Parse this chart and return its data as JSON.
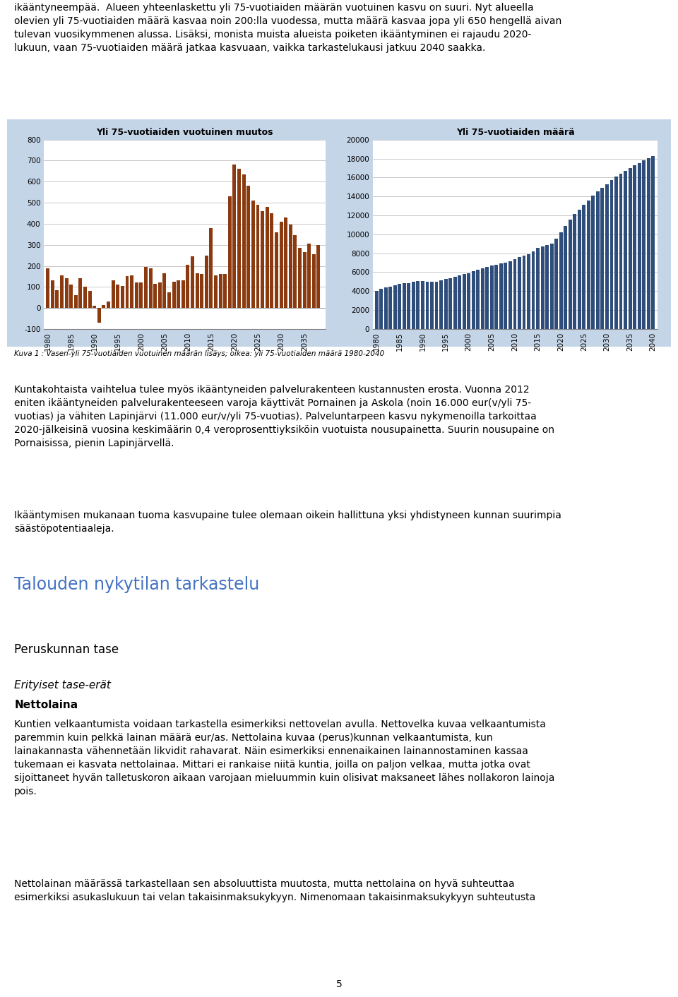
{
  "left_title": "Yli 75-vuotiaiden vuotuinen muutos",
  "right_title": "Yli 75-vuotiaiden määrä",
  "caption": "Kuva 1 : Vasen-yli 75-vuotiaiden vuotuinen määrän lisäys; oikea: yli 75-vuotiaiden määrä 1980-2040",
  "left_years": [
    1980,
    1981,
    1982,
    1983,
    1984,
    1985,
    1986,
    1987,
    1988,
    1989,
    1990,
    1991,
    1992,
    1993,
    1994,
    1995,
    1996,
    1997,
    1998,
    1999,
    2000,
    2001,
    2002,
    2003,
    2004,
    2005,
    2006,
    2007,
    2008,
    2009,
    2010,
    2011,
    2012,
    2013,
    2014,
    2015,
    2016,
    2017,
    2018,
    2019,
    2020,
    2021,
    2022,
    2023,
    2024,
    2025,
    2026,
    2027,
    2028,
    2029,
    2030,
    2031,
    2032,
    2033,
    2034,
    2035,
    2036,
    2037,
    2038
  ],
  "left_values": [
    190,
    130,
    85,
    155,
    140,
    110,
    60,
    140,
    100,
    80,
    10,
    -70,
    15,
    30,
    130,
    110,
    105,
    150,
    155,
    120,
    120,
    195,
    190,
    115,
    120,
    165,
    75,
    125,
    130,
    130,
    205,
    245,
    165,
    160,
    250,
    380,
    155,
    160,
    160,
    530,
    680,
    660,
    635,
    580,
    510,
    490,
    460,
    480,
    450,
    360,
    410,
    430,
    395,
    345,
    285,
    265,
    305,
    255,
    300
  ],
  "right_years": [
    1980,
    1981,
    1982,
    1983,
    1984,
    1985,
    1986,
    1987,
    1988,
    1989,
    1990,
    1991,
    1992,
    1993,
    1994,
    1995,
    1996,
    1997,
    1998,
    1999,
    2000,
    2001,
    2002,
    2003,
    2004,
    2005,
    2006,
    2007,
    2008,
    2009,
    2010,
    2011,
    2012,
    2013,
    2014,
    2015,
    2016,
    2017,
    2018,
    2019,
    2020,
    2021,
    2022,
    2023,
    2024,
    2025,
    2026,
    2027,
    2028,
    2029,
    2030,
    2031,
    2032,
    2033,
    2034,
    2035,
    2036,
    2037,
    2038,
    2039,
    2040
  ],
  "right_values": [
    4050,
    4240,
    4370,
    4455,
    4610,
    4750,
    4810,
    4870,
    4970,
    5050,
    5060,
    4990,
    5005,
    5020,
    5150,
    5260,
    5365,
    5515,
    5670,
    5790,
    5910,
    6105,
    6295,
    6410,
    6530,
    6695,
    6770,
    6895,
    7025,
    7155,
    7360,
    7605,
    7770,
    7930,
    8180,
    8560,
    8715,
    8875,
    9035,
    9565,
    10245,
    10905,
    11540,
    12120,
    12630,
    13120,
    13580,
    14060,
    14510,
    14870,
    15280,
    15690,
    16085,
    16430,
    16715,
    16980,
    17285,
    17540,
    17795,
    18050,
    18250
  ],
  "left_bar_color": "#8B3A10",
  "right_bar_color": "#2E4D7B",
  "left_ylim": [
    -100,
    800
  ],
  "right_ylim": [
    0,
    20000
  ],
  "left_yticks": [
    -100,
    0,
    100,
    200,
    300,
    400,
    500,
    600,
    700,
    800
  ],
  "right_yticks": [
    0,
    2000,
    4000,
    6000,
    8000,
    10000,
    12000,
    14000,
    16000,
    18000,
    20000
  ],
  "left_xticks": [
    1980,
    1985,
    1990,
    1995,
    2000,
    2005,
    2010,
    2015,
    2020,
    2025,
    2030,
    2035
  ],
  "right_xticks": [
    1980,
    1985,
    1990,
    1995,
    2000,
    2005,
    2010,
    2015,
    2020,
    2025,
    2030,
    2035,
    2040
  ],
  "bg_color": "#C5D5E8",
  "plot_bg_color": "#FFFFFF",
  "title_fontsize": 9,
  "tick_fontsize": 7.5,
  "caption_fontsize": 7.5,
  "page_number": "5"
}
